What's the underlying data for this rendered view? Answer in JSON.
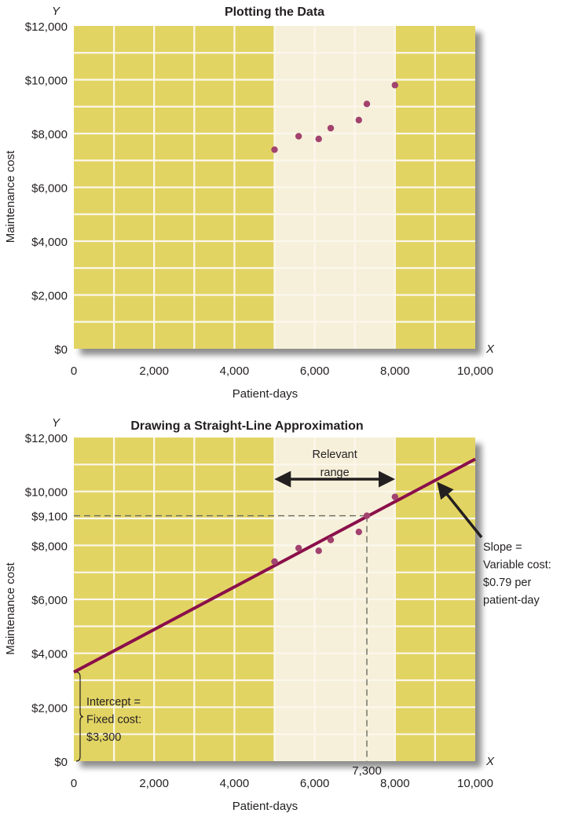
{
  "colors": {
    "outside_range": "#E2D463",
    "relevant_range": "#F6F0DA",
    "grid": "#FBF7EC",
    "point": "#A2426E",
    "fit_line": "#8A0F4A",
    "text": "#231f20",
    "dashed": "#6b6b60"
  },
  "chart_data": [
    {
      "type": "scatter",
      "title": "Plotting the Data",
      "xlabel": "Patient-days",
      "ylabel": "Maintenance cost",
      "x_axis_letter": "X",
      "y_axis_letter": "Y",
      "xlim": [
        0,
        10000
      ],
      "ylim": [
        0,
        12000
      ],
      "x_ticks": [
        0,
        2000,
        4000,
        6000,
        8000,
        10000
      ],
      "x_tick_labels": [
        "0",
        "2,000",
        "4,000",
        "6,000",
        "8,000",
        "10,000"
      ],
      "y_ticks": [
        0,
        2000,
        4000,
        6000,
        8000,
        10000,
        12000
      ],
      "y_tick_labels": [
        "$0",
        "$2,000",
        "$4,000",
        "$6,000",
        "$8,000",
        "$10,000",
        "$12,000"
      ],
      "grid": true,
      "grid_step_x": 1000,
      "grid_step_y": 1000,
      "relevant_range": [
        5000,
        8000
      ],
      "points": [
        {
          "x": 5000,
          "y": 7400
        },
        {
          "x": 5600,
          "y": 7900
        },
        {
          "x": 6100,
          "y": 7800
        },
        {
          "x": 6400,
          "y": 8200
        },
        {
          "x": 7100,
          "y": 8500
        },
        {
          "x": 7300,
          "y": 9100
        },
        {
          "x": 8000,
          "y": 9800
        }
      ]
    },
    {
      "type": "scatter",
      "title": "Drawing a Straight-Line Approximation",
      "xlabel": "Patient-days",
      "ylabel": "Maintenance cost",
      "x_axis_letter": "X",
      "y_axis_letter": "Y",
      "xlim": [
        0,
        10000
      ],
      "ylim": [
        0,
        12000
      ],
      "x_ticks": [
        0,
        2000,
        4000,
        6000,
        8000,
        10000
      ],
      "x_tick_labels": [
        "0",
        "2,000",
        "4,000",
        "6,000",
        "8,000",
        "10,000"
      ],
      "y_ticks": [
        0,
        2000,
        4000,
        6000,
        8000,
        9100,
        10000,
        12000
      ],
      "y_tick_labels": [
        "$0",
        "$2,000",
        "$4,000",
        "$6,000",
        "$8,000",
        "$9,100",
        "$10,000",
        "$12,000"
      ],
      "grid": true,
      "grid_step_x": 1000,
      "grid_step_y": 1000,
      "relevant_range": [
        5000,
        8000
      ],
      "points": [
        {
          "x": 5000,
          "y": 7400
        },
        {
          "x": 5600,
          "y": 7900
        },
        {
          "x": 6100,
          "y": 7800
        },
        {
          "x": 6400,
          "y": 8200
        },
        {
          "x": 7100,
          "y": 8500
        },
        {
          "x": 7300,
          "y": 9100
        },
        {
          "x": 8000,
          "y": 9800
        }
      ],
      "fit_line": {
        "intercept": 3300,
        "slope": 0.79
      },
      "reference_point": {
        "x": 7300,
        "y": 9100,
        "x_label": "7,300",
        "y_label": "$9,100"
      },
      "annotations": {
        "relevant_range_label": [
          "Relevant",
          "range"
        ],
        "slope_label": [
          "Slope =",
          "Variable cost:",
          "$0.79 per",
          "patient-day"
        ],
        "slope_arrow_target_x": 9000,
        "intercept_label": [
          "Intercept =",
          "Fixed cost:",
          "$3,300"
        ]
      }
    }
  ]
}
